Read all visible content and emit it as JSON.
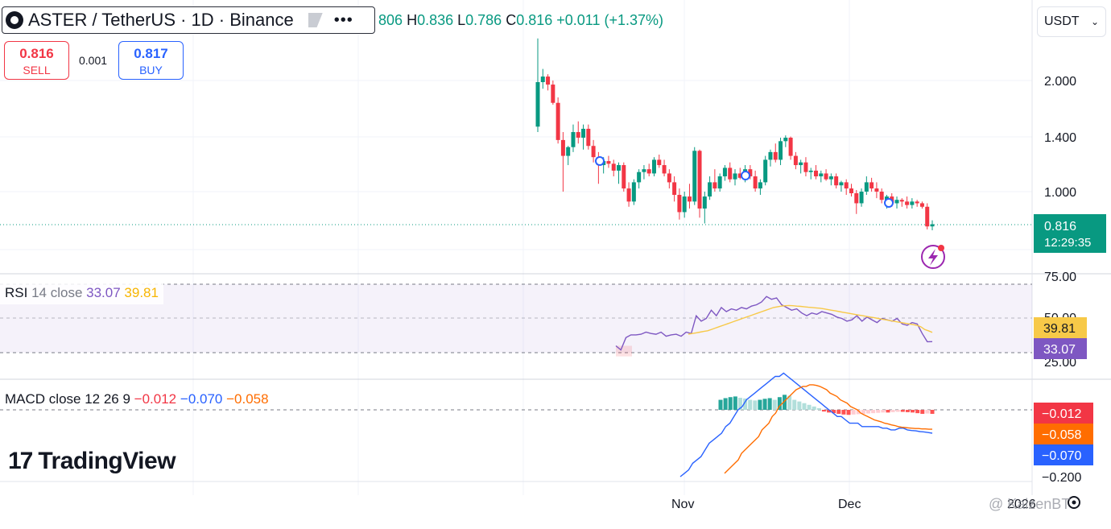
{
  "header": {
    "title": "ASTER / TetherUS · 1D · Binance",
    "more_icon": "more-horizontal-icon",
    "ohlc_open_partial": "806",
    "ohlc_high_label": "H",
    "ohlc_high": "0.836",
    "ohlc_low_label": "L",
    "ohlc_low": "0.786",
    "ohlc_close_label": "C",
    "ohlc_close": "0.816",
    "ohlc_change": "+0.011 (+1.37%)"
  },
  "trade": {
    "sell_price": "0.816",
    "sell_label": "SELL",
    "spread": "0.001",
    "buy_price": "0.817",
    "buy_label": "BUY"
  },
  "currency_select": {
    "value": "USDT"
  },
  "price_axis": {
    "ticks": [
      "2.000",
      "1.400",
      "1.000"
    ],
    "current_price": "0.816",
    "countdown": "12:29:35"
  },
  "rsi": {
    "label": "RSI",
    "params": "14 close",
    "value": "33.07",
    "ma_value": "39.81",
    "ticks": [
      "75.00",
      "50.00",
      "25.00"
    ]
  },
  "macd": {
    "label": "MACD",
    "params": "close 12 26 9",
    "hist": "−0.012",
    "macd": "−0.070",
    "signal": "−0.058",
    "tick_bottom": "−0.200"
  },
  "time_axis": {
    "labels": [
      "Nov",
      "Dec",
      "2026"
    ]
  },
  "branding": {
    "logo_text": "TradingView",
    "logo_mark": "17",
    "watermark": "@ KaizenBT"
  },
  "colors": {
    "up": "#089981",
    "down": "#f23645",
    "rsi": "#7e57c2",
    "rsi_ma": "#f7c948",
    "macd": "#2962ff",
    "signal": "#ff6d00"
  },
  "chart_data": {
    "type": "candlestick",
    "scale": "log",
    "ylim": [
      0.75,
      2.6
    ],
    "candles": [
      [
        1.5,
        2.6,
        1.45,
        1.98
      ],
      [
        1.98,
        2.15,
        1.9,
        2.05
      ],
      [
        2.05,
        2.08,
        1.88,
        1.95
      ],
      [
        1.95,
        2.0,
        1.72,
        1.74
      ],
      [
        1.74,
        1.8,
        1.35,
        1.38
      ],
      [
        1.38,
        1.45,
        1.0,
        1.25
      ],
      [
        1.25,
        1.33,
        1.18,
        1.32
      ],
      [
        1.32,
        1.52,
        1.28,
        1.45
      ],
      [
        1.45,
        1.55,
        1.35,
        1.4
      ],
      [
        1.4,
        1.52,
        1.3,
        1.48
      ],
      [
        1.48,
        1.52,
        1.3,
        1.33
      ],
      [
        1.33,
        1.38,
        1.2,
        1.24
      ],
      [
        1.24,
        1.28,
        1.05,
        1.18
      ],
      [
        1.18,
        1.24,
        1.12,
        1.21
      ],
      [
        1.21,
        1.25,
        1.16,
        1.19
      ],
      [
        1.19,
        1.22,
        1.1,
        1.14
      ],
      [
        1.14,
        1.2,
        1.05,
        1.18
      ],
      [
        1.18,
        1.2,
        1.0,
        1.02
      ],
      [
        1.02,
        1.06,
        0.91,
        0.94
      ],
      [
        0.94,
        1.08,
        0.92,
        1.06
      ],
      [
        1.06,
        1.15,
        1.02,
        1.13
      ],
      [
        1.13,
        1.18,
        1.08,
        1.15
      ],
      [
        1.15,
        1.19,
        1.1,
        1.12
      ],
      [
        1.12,
        1.24,
        1.1,
        1.22
      ],
      [
        1.22,
        1.26,
        1.16,
        1.18
      ],
      [
        1.18,
        1.22,
        1.1,
        1.12
      ],
      [
        1.12,
        1.15,
        1.02,
        1.06
      ],
      [
        1.06,
        1.1,
        0.94,
        0.98
      ],
      [
        0.98,
        1.02,
        0.84,
        0.88
      ],
      [
        0.88,
        1.0,
        0.85,
        0.97
      ],
      [
        0.97,
        1.05,
        0.9,
        0.94
      ],
      [
        0.94,
        1.32,
        0.92,
        1.29
      ],
      [
        1.29,
        1.3,
        0.85,
        0.9
      ],
      [
        0.9,
        1.0,
        0.82,
        0.97
      ],
      [
        0.97,
        1.1,
        0.95,
        1.06
      ],
      [
        1.06,
        1.15,
        1.0,
        1.02
      ],
      [
        1.02,
        1.12,
        1.0,
        1.1
      ],
      [
        1.1,
        1.18,
        1.07,
        1.16
      ],
      [
        1.16,
        1.2,
        1.06,
        1.08
      ],
      [
        1.08,
        1.15,
        1.04,
        1.12
      ],
      [
        1.12,
        1.16,
        1.08,
        1.09
      ],
      [
        1.09,
        1.18,
        1.06,
        1.15
      ],
      [
        1.15,
        1.18,
        1.08,
        1.1
      ],
      [
        1.1,
        1.14,
        1.0,
        1.02
      ],
      [
        1.02,
        1.08,
        0.98,
        1.06
      ],
      [
        1.06,
        1.25,
        1.04,
        1.22
      ],
      [
        1.22,
        1.3,
        1.17,
        1.28
      ],
      [
        1.28,
        1.35,
        1.2,
        1.22
      ],
      [
        1.22,
        1.4,
        1.18,
        1.37
      ],
      [
        1.37,
        1.42,
        1.32,
        1.4
      ],
      [
        1.4,
        1.41,
        1.22,
        1.25
      ],
      [
        1.25,
        1.28,
        1.15,
        1.18
      ],
      [
        1.18,
        1.22,
        1.12,
        1.2
      ],
      [
        1.2,
        1.24,
        1.1,
        1.13
      ],
      [
        1.13,
        1.16,
        1.08,
        1.14
      ],
      [
        1.14,
        1.18,
        1.08,
        1.1
      ],
      [
        1.1,
        1.14,
        1.06,
        1.12
      ],
      [
        1.12,
        1.15,
        1.07,
        1.08
      ],
      [
        1.08,
        1.12,
        1.04,
        1.1
      ],
      [
        1.1,
        1.12,
        1.02,
        1.04
      ],
      [
        1.04,
        1.07,
        1.0,
        1.06
      ],
      [
        1.06,
        1.08,
        0.98,
        1.02
      ],
      [
        1.02,
        1.05,
        0.97,
        0.99
      ],
      [
        0.99,
        1.01,
        0.87,
        0.93
      ],
      [
        0.93,
        1.02,
        0.91,
        1.0
      ],
      [
        1.0,
        1.1,
        0.98,
        1.06
      ],
      [
        1.06,
        1.09,
        1.0,
        1.02
      ],
      [
        1.02,
        1.06,
        0.96,
        1.0
      ],
      [
        1.0,
        1.02,
        0.93,
        0.95
      ],
      [
        0.95,
        0.98,
        0.9,
        0.97
      ],
      [
        0.97,
        0.99,
        0.91,
        0.93
      ],
      [
        0.93,
        0.97,
        0.9,
        0.95
      ],
      [
        0.95,
        0.96,
        0.91,
        0.94
      ],
      [
        0.94,
        0.97,
        0.9,
        0.92
      ],
      [
        0.92,
        0.96,
        0.9,
        0.94
      ],
      [
        0.94,
        0.95,
        0.91,
        0.93
      ],
      [
        0.93,
        0.94,
        0.9,
        0.91
      ],
      [
        0.91,
        0.93,
        0.79,
        0.805
      ],
      [
        0.805,
        0.836,
        0.786,
        0.816
      ]
    ],
    "rsi_values": [
      30,
      27,
      36,
      38,
      38,
      38.5,
      40,
      39,
      38.5,
      40,
      37,
      38,
      38.5,
      37,
      40,
      39,
      52,
      48,
      50,
      56,
      52,
      58,
      55,
      57,
      56,
      58,
      57,
      59,
      60,
      62,
      66,
      64,
      65,
      60,
      58,
      56,
      57,
      54,
      52,
      54,
      53,
      55,
      54,
      53,
      51,
      50,
      48,
      49,
      52,
      48,
      51,
      49,
      47,
      50,
      49,
      48,
      50,
      46,
      45,
      47,
      46,
      39,
      33,
      33.07
    ],
    "rsi_ma_values": [
      38.5,
      39,
      39.5,
      40,
      40.5,
      41,
      42,
      43,
      44,
      45,
      46,
      47,
      48,
      49,
      50,
      51,
      52,
      53,
      54,
      55,
      56,
      57,
      58,
      58.5,
      59,
      59.3,
      59.5,
      59.3,
      59,
      58.8,
      58.5,
      58.2,
      58,
      57.7,
      57.5,
      57,
      56.5,
      56,
      55.5,
      55,
      54.5,
      54,
      53.5,
      53,
      52.5,
      52,
      51.5,
      51,
      50.5,
      50,
      49.5,
      49,
      48.5,
      48,
      47.5,
      47,
      46.5,
      46,
      45.5,
      45,
      44,
      42,
      41,
      39.81
    ],
    "macd_values": [
      -0.2,
      -0.19,
      -0.18,
      -0.16,
      -0.15,
      -0.14,
      -0.12,
      -0.1,
      -0.09,
      -0.08,
      -0.07,
      -0.05,
      -0.04,
      -0.02,
      0.0,
      0.01,
      0.03,
      0.04,
      0.05,
      0.06,
      0.07,
      0.08,
      0.09,
      0.1,
      0.1,
      0.11,
      0.1,
      0.09,
      0.08,
      0.07,
      0.06,
      0.05,
      0.04,
      0.03,
      0.02,
      0.01,
      0.0,
      -0.01,
      -0.02,
      -0.02,
      -0.03,
      -0.04,
      -0.04,
      -0.04,
      -0.05,
      -0.05,
      -0.05,
      -0.05,
      -0.05,
      -0.055,
      -0.055,
      -0.06,
      -0.06,
      -0.055,
      -0.055,
      -0.06,
      -0.062,
      -0.063,
      -0.065,
      -0.066,
      -0.068,
      -0.07
    ],
    "signal_values": [
      -0.19,
      -0.18,
      -0.17,
      -0.16,
      -0.15,
      -0.13,
      -0.12,
      -0.11,
      -0.1,
      -0.09,
      -0.08,
      -0.06,
      -0.05,
      -0.04,
      -0.02,
      -0.01,
      0.01,
      0.02,
      0.03,
      0.04,
      0.05,
      0.06,
      0.065,
      0.07,
      0.07,
      0.075,
      0.075,
      0.073,
      0.07,
      0.065,
      0.06,
      0.05,
      0.045,
      0.04,
      0.03,
      0.025,
      0.02,
      0.01,
      0.005,
      0.0,
      -0.01,
      -0.015,
      -0.02,
      -0.025,
      -0.03,
      -0.033,
      -0.036,
      -0.04,
      -0.042,
      -0.045,
      -0.047,
      -0.05,
      -0.052,
      -0.053,
      -0.054,
      -0.055,
      -0.056,
      -0.056,
      -0.057,
      -0.057,
      -0.058,
      -0.058
    ],
    "hist_values": [
      0.03,
      0.035,
      0.038,
      0.04,
      0.036,
      0.034,
      0.03,
      0.028,
      0.03,
      0.033,
      0.035,
      0.03,
      0.038,
      0.045,
      0.042,
      0.03,
      0.025,
      0.02,
      0.015,
      0.01,
      0.005,
      -0.005,
      -0.008,
      -0.01,
      -0.012,
      -0.014,
      -0.015,
      -0.014,
      -0.013,
      -0.012,
      -0.011,
      -0.01,
      -0.009,
      -0.008,
      -0.008,
      -0.007,
      -0.006,
      -0.006,
      -0.007,
      -0.008,
      -0.01,
      -0.012,
      -0.011,
      -0.012
    ]
  }
}
